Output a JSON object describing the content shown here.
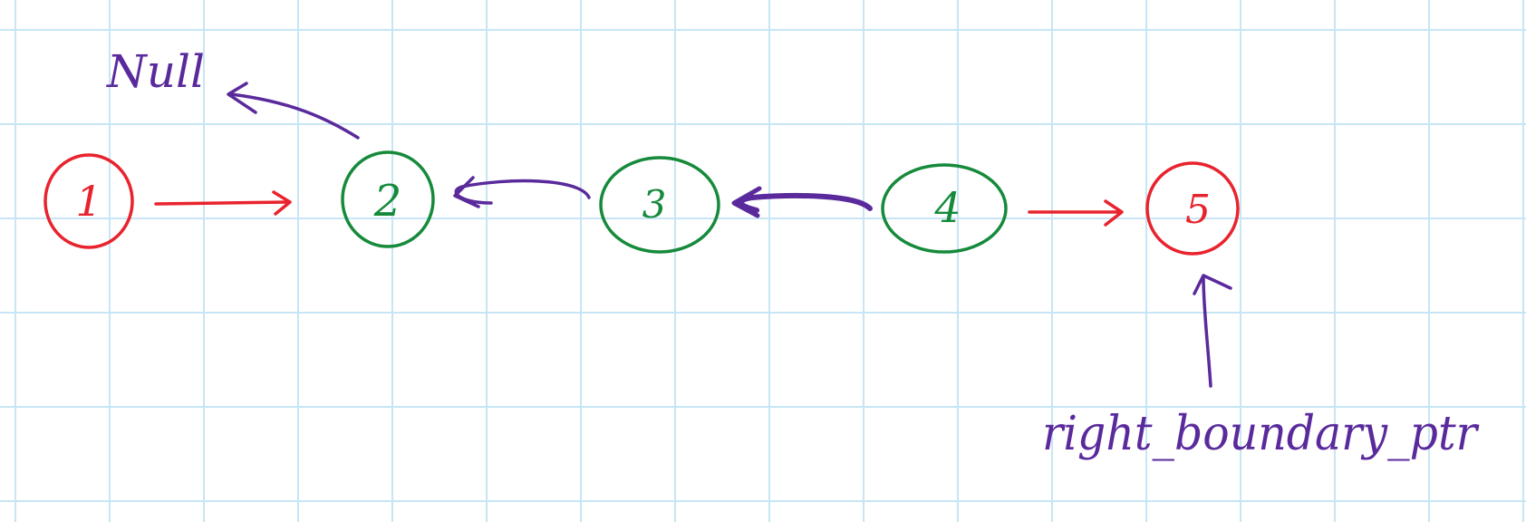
{
  "labels": {
    "null_label": "Null",
    "pointer_label": "right_boundary_ptr"
  },
  "nodes": [
    {
      "value": "1",
      "color": "#e8232e"
    },
    {
      "value": "2",
      "color": "#168a3b"
    },
    {
      "value": "3",
      "color": "#168a3b"
    },
    {
      "value": "4",
      "color": "#168a3b"
    },
    {
      "value": "5",
      "color": "#e8232e"
    }
  ],
  "colors": {
    "red": "#e8232e",
    "green": "#168a3b",
    "purple": "#5a2a9c",
    "grid": "#c7e5f4"
  }
}
